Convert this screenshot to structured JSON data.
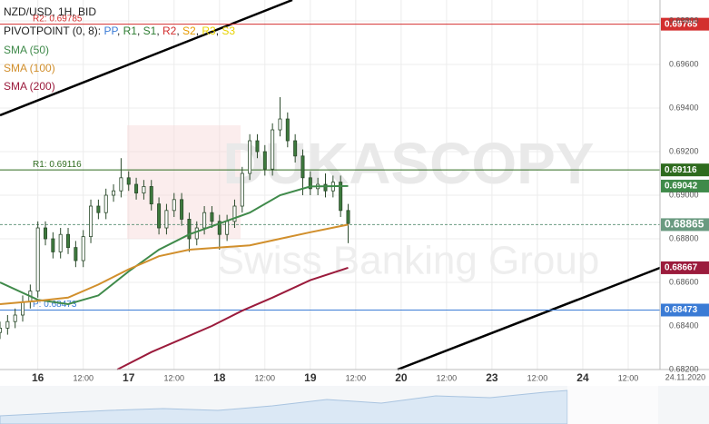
{
  "chart_data": {
    "type": "candlestick",
    "title": "NZD/USD, 1H, BID",
    "indicator": "PIVOTPOINT (0, 8):",
    "pivot_names": [
      {
        "name": "PP",
        "color": "#3a7bd5"
      },
      {
        "name": "R1",
        "color": "#2e7d32"
      },
      {
        "name": "S1",
        "color": "#2e7d32"
      },
      {
        "name": "R2",
        "color": "#d32f2f"
      },
      {
        "name": "S2",
        "color": "#e69a00"
      },
      {
        "name": "R3",
        "color": "#e8d200"
      },
      {
        "name": "S3",
        "color": "#e8d200"
      }
    ],
    "watermark": [
      "DUKASCOPY",
      "Swiss Banking Group"
    ],
    "date_label": "24.11.2020",
    "up_color": "#ffffff",
    "down_color": "#3d7a3d",
    "candle_stroke": "#2b4a2b",
    "x": [
      -10,
      -8,
      -6,
      -4,
      -2,
      0,
      2,
      4,
      6,
      8,
      10,
      12,
      14,
      16,
      18,
      20,
      22,
      24,
      26,
      28,
      30,
      32,
      34,
      36,
      38,
      40,
      42,
      44,
      46,
      48,
      50,
      52,
      54,
      56,
      58,
      60,
      62,
      64,
      66,
      68,
      70,
      72,
      74,
      76,
      78,
      80,
      82
    ],
    "open": [
      0.6837,
      0.6839,
      0.6842,
      0.6845,
      0.6851,
      0.6856,
      0.6885,
      0.688,
      0.6874,
      0.6882,
      0.6876,
      0.687,
      0.6881,
      0.6895,
      0.6892,
      0.69,
      0.6902,
      0.6908,
      0.6905,
      0.6901,
      0.6904,
      0.6896,
      0.6885,
      0.6893,
      0.6898,
      0.6889,
      0.688,
      0.6885,
      0.6892,
      0.6888,
      0.6882,
      0.6888,
      0.6895,
      0.691,
      0.6925,
      0.692,
      0.6912,
      0.693,
      0.6935,
      0.6925,
      0.6918,
      0.6908,
      0.6903,
      0.6905,
      0.6902,
      0.6906,
      0.6893
    ],
    "high": [
      0.6842,
      0.6845,
      0.6848,
      0.6854,
      0.6859,
      0.6888,
      0.6888,
      0.6883,
      0.6885,
      0.6885,
      0.6879,
      0.6884,
      0.6898,
      0.6898,
      0.6903,
      0.6905,
      0.6917,
      0.6911,
      0.6908,
      0.6907,
      0.6907,
      0.6899,
      0.6896,
      0.6901,
      0.6901,
      0.6892,
      0.6888,
      0.6895,
      0.6895,
      0.6891,
      0.6891,
      0.6898,
      0.6913,
      0.6928,
      0.6928,
      0.6923,
      0.6933,
      0.6945,
      0.6938,
      0.6928,
      0.6921,
      0.6911,
      0.6908,
      0.691,
      0.6909,
      0.6909,
      0.6896
    ],
    "low": [
      0.6834,
      0.6836,
      0.6839,
      0.6842,
      0.6848,
      0.6853,
      0.6877,
      0.6871,
      0.6871,
      0.6873,
      0.6867,
      0.6867,
      0.6878,
      0.6889,
      0.6889,
      0.6897,
      0.6899,
      0.6902,
      0.6898,
      0.6898,
      0.6893,
      0.6882,
      0.6882,
      0.689,
      0.6886,
      0.6874,
      0.6877,
      0.6882,
      0.6885,
      0.6875,
      0.6879,
      0.6885,
      0.6892,
      0.6907,
      0.6917,
      0.6909,
      0.6909,
      0.6927,
      0.6922,
      0.6915,
      0.69,
      0.69,
      0.69,
      0.6899,
      0.6899,
      0.689,
      0.6878
    ],
    "close": [
      0.6839,
      0.6842,
      0.6845,
      0.6851,
      0.6856,
      0.6885,
      0.688,
      0.6874,
      0.6882,
      0.6876,
      0.687,
      0.6881,
      0.6895,
      0.6892,
      0.69,
      0.6902,
      0.6908,
      0.6905,
      0.6901,
      0.6904,
      0.6896,
      0.6885,
      0.6893,
      0.6898,
      0.6889,
      0.688,
      0.6885,
      0.6892,
      0.6888,
      0.6882,
      0.6888,
      0.6895,
      0.691,
      0.6925,
      0.692,
      0.6912,
      0.693,
      0.6935,
      0.6925,
      0.6918,
      0.6908,
      0.6903,
      0.6905,
      0.6902,
      0.6906,
      0.6893,
      0.6887
    ],
    "lines": [
      {
        "name": "SMA (50)",
        "color": "#3f8a4a",
        "tag": 0.69042,
        "x": [
          -10,
          0,
          8,
          16,
          24,
          32,
          40,
          48,
          56,
          64,
          72,
          82
        ],
        "values": [
          0.686,
          0.6852,
          0.685,
          0.6854,
          0.6865,
          0.6875,
          0.6882,
          0.6887,
          0.6892,
          0.69,
          0.6904,
          0.69042
        ]
      },
      {
        "name": "SMA (100)",
        "color": "#d18f2c",
        "tag": 0.68865,
        "x": [
          -10,
          0,
          8,
          16,
          24,
          32,
          40,
          48,
          56,
          64,
          72,
          82
        ],
        "values": [
          0.685,
          0.68515,
          0.6853,
          0.6859,
          0.6866,
          0.6872,
          0.6875,
          0.6876,
          0.6877,
          0.688,
          0.6883,
          0.68865
        ]
      },
      {
        "name": "SMA (200)",
        "color": "#9b1b3c",
        "tag": 0.68667,
        "x": [
          21,
          30,
          38,
          46,
          54,
          62,
          72,
          82
        ],
        "values": [
          0.682,
          0.6828,
          0.6834,
          0.684,
          0.6847,
          0.6853,
          0.6861,
          0.68667
        ]
      }
    ],
    "levels": [
      {
        "label": "R2: 0.69785",
        "value": 0.69785,
        "color": "#d32f2f"
      },
      {
        "label": "R1: 0.69116",
        "value": 0.69116,
        "color": "#2e6b1e"
      },
      {
        "label": "P: 0.68473",
        "value": 0.68473,
        "color": "#3a7bd5"
      }
    ],
    "current": 0.68865,
    "current_color": "#6a9a80",
    "xlim": [
      -10,
      164.4
    ],
    "ylim": [
      0.682,
      0.69896
    ],
    "xticks": [
      {
        "value": 0,
        "label": "16"
      },
      {
        "value": 12,
        "label": "12:00"
      },
      {
        "value": 24,
        "label": "17"
      },
      {
        "value": 36,
        "label": "12:00"
      },
      {
        "value": 48,
        "label": "18"
      },
      {
        "value": 60,
        "label": "12:00"
      },
      {
        "value": 72,
        "label": "19"
      },
      {
        "value": 84,
        "label": "12:00"
      },
      {
        "value": 96,
        "label": "20"
      },
      {
        "value": 108,
        "label": "12:00"
      },
      {
        "value": 120,
        "label": "23"
      },
      {
        "value": 132,
        "label": "12:00"
      },
      {
        "value": 144,
        "label": "24"
      },
      {
        "value": 156,
        "label": "12:00"
      }
    ],
    "yticks": [
      {
        "value": 0.682,
        "label": "0.68200"
      },
      {
        "value": 0.684,
        "label": "0.68400"
      },
      {
        "value": 0.686,
        "label": "0.68600"
      },
      {
        "value": 0.688,
        "label": "0.68800"
      },
      {
        "value": 0.69,
        "label": "0.69000"
      },
      {
        "value": 0.692,
        "label": "0.69200"
      },
      {
        "value": 0.694,
        "label": "0.69400"
      },
      {
        "value": 0.696,
        "label": "0.69600"
      },
      {
        "value": 0.698,
        "label": "0.69800"
      }
    ],
    "grid": true
  }
}
